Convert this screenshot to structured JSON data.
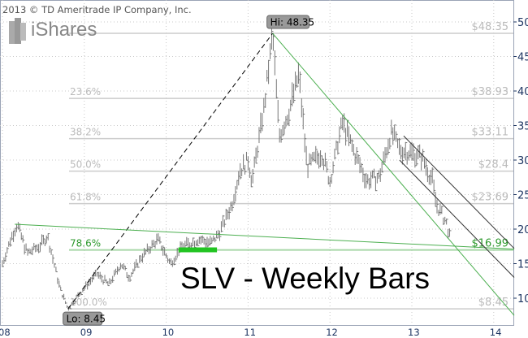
{
  "copyright": "2013 © TD Ameritrade IP Company, Inc.",
  "logo_text": "iShares",
  "chart_data": {
    "type": "bar",
    "subtype": "weekly-ohlc",
    "title": "SLV - Weekly Bars",
    "ylim": [
      6,
      53
    ],
    "y_ticks": [
      10,
      15,
      20,
      25,
      30,
      35,
      40,
      45,
      50
    ],
    "x_tick_labels": [
      "08",
      "09",
      "10",
      "11",
      "12",
      "13",
      "14"
    ],
    "x_ticks": [
      2008,
      2009,
      2010,
      2011,
      2012,
      2013,
      2014
    ],
    "xlim": [
      2008,
      2014.25
    ],
    "grid": true,
    "price_path": [
      [
        2008.0,
        15.0
      ],
      [
        2008.1,
        18.5
      ],
      [
        2008.18,
        20.7
      ],
      [
        2008.3,
        16.5
      ],
      [
        2008.45,
        17.5
      ],
      [
        2008.55,
        19.0
      ],
      [
        2008.62,
        15.5
      ],
      [
        2008.7,
        11.5
      ],
      [
        2008.8,
        8.45
      ],
      [
        2008.9,
        10.0
      ],
      [
        2009.0,
        11.5
      ],
      [
        2009.15,
        13.5
      ],
      [
        2009.3,
        12.0
      ],
      [
        2009.45,
        15.0
      ],
      [
        2009.55,
        13.0
      ],
      [
        2009.7,
        16.0
      ],
      [
        2009.9,
        18.5
      ],
      [
        2010.05,
        15.0
      ],
      [
        2010.2,
        17.5
      ],
      [
        2010.4,
        18.5
      ],
      [
        2010.55,
        18.0
      ],
      [
        2010.65,
        19.5
      ],
      [
        2010.8,
        23.5
      ],
      [
        2010.9,
        28.5
      ],
      [
        2011.0,
        30.0
      ],
      [
        2011.05,
        27.0
      ],
      [
        2011.2,
        38.0
      ],
      [
        2011.3,
        48.35
      ],
      [
        2011.38,
        33.5
      ],
      [
        2011.5,
        37.0
      ],
      [
        2011.62,
        42.5
      ],
      [
        2011.72,
        29.0
      ],
      [
        2011.9,
        31.0
      ],
      [
        2012.0,
        27.0
      ],
      [
        2012.15,
        35.5
      ],
      [
        2012.3,
        31.0
      ],
      [
        2012.45,
        27.0
      ],
      [
        2012.6,
        27.5
      ],
      [
        2012.75,
        34.0
      ],
      [
        2012.85,
        31.5
      ],
      [
        2013.0,
        31.0
      ],
      [
        2013.12,
        30.5
      ],
      [
        2013.25,
        27.0
      ],
      [
        2013.3,
        23.5
      ],
      [
        2013.42,
        21.0
      ],
      [
        2013.48,
        18.0
      ]
    ],
    "fib_levels": [
      {
        "pct": "",
        "value": "$48.35",
        "price": 48.35
      },
      {
        "pct": "23.6%",
        "value": "$38.93",
        "price": 38.93
      },
      {
        "pct": "38.2%",
        "value": "$33.11",
        "price": 33.11
      },
      {
        "pct": "50.0%",
        "value": "$28.4",
        "price": 28.4
      },
      {
        "pct": "61.8%",
        "value": "$23.69",
        "price": 23.69
      },
      {
        "pct": "78.6%",
        "value": "$16.99",
        "price": 16.99,
        "highlight": true
      },
      {
        "pct": "100.0%",
        "value": "$8.45",
        "price": 8.45
      }
    ],
    "annotations": {
      "hi": {
        "label": "Hi: 48.35",
        "date": 2011.3,
        "price": 48.35
      },
      "lo": {
        "label": "Lo: 8.45",
        "date": 2008.8,
        "price": 8.45
      }
    },
    "trendlines": [
      {
        "kind": "dashed",
        "color": "#000000",
        "from": [
          2008.8,
          8.45
        ],
        "to": [
          2011.3,
          48.35
        ]
      },
      {
        "kind": "solid",
        "color": "#4caf50",
        "from": [
          2011.3,
          48.35
        ],
        "to": [
          2014.25,
          7.5
        ]
      },
      {
        "kind": "solid",
        "color": "#4caf50",
        "from": [
          2008.15,
          20.7
        ],
        "to": [
          2014.25,
          17.1
        ]
      },
      {
        "kind": "solid",
        "color": "#333333",
        "from": [
          2012.9,
          33.5
        ],
        "to": [
          2014.25,
          17.2
        ]
      },
      {
        "kind": "solid",
        "color": "#333333",
        "from": [
          2012.85,
          30.0
        ],
        "to": [
          2014.25,
          13.0
        ]
      }
    ],
    "support_zone": {
      "from": 2010.15,
      "to": 2010.62,
      "price": 17.0,
      "color": "#22c422"
    }
  },
  "colors": {
    "bars": "#777777",
    "fib_line": "#cccccc",
    "fib_text": "#bbbbbb",
    "highlight": "#2e9a2e",
    "axis_text": "#1d3461"
  }
}
